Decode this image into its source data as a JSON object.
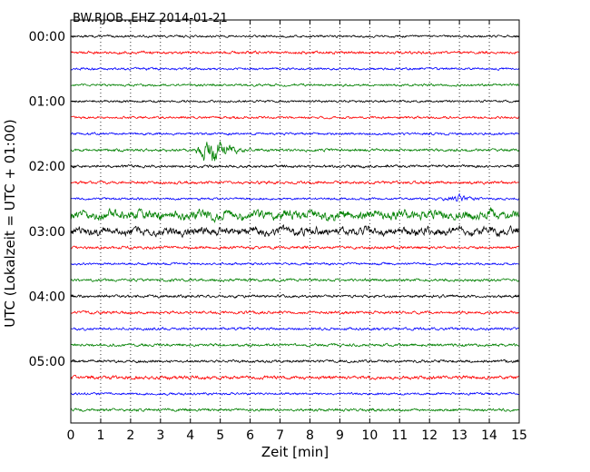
{
  "chart_data": {
    "type": "line",
    "title": "BW.RJOB..EHZ 2014-01-21",
    "xlabel": "Zeit  [min]",
    "ylabel": "UTC (Lokalzeit = UTC + 01:00)",
    "xlim": [
      0,
      15
    ],
    "x_ticks": [
      "0",
      "1",
      "2",
      "3",
      "4",
      "5",
      "6",
      "7",
      "8",
      "9",
      "10",
      "11",
      "12",
      "13",
      "14",
      "15"
    ],
    "y_ticks": [
      "00:00",
      "01:00",
      "02:00",
      "03:00",
      "04:00",
      "05:00"
    ],
    "grid": "vertical dotted at each minute",
    "trace_interval_min": 15,
    "trace_colors": [
      "#000000",
      "#ff0000",
      "#0000ff",
      "#008000"
    ],
    "traces": [
      {
        "start": "00:00",
        "amplitude": 0.1
      },
      {
        "start": "00:15",
        "amplitude": 0.12
      },
      {
        "start": "00:30",
        "amplitude": 0.1
      },
      {
        "start": "00:45",
        "amplitude": 0.1
      },
      {
        "start": "01:00",
        "amplitude": 0.1
      },
      {
        "start": "01:15",
        "amplitude": 0.1
      },
      {
        "start": "01:30",
        "amplitude": 0.1
      },
      {
        "start": "01:45",
        "amplitude": 0.12,
        "event": {
          "from_min": 4.2,
          "to_min": 7.5,
          "peak_min": 4.7,
          "peak_amplitude": 1.0
        }
      },
      {
        "start": "02:00",
        "amplitude": 0.12
      },
      {
        "start": "02:15",
        "amplitude": 0.12
      },
      {
        "start": "02:30",
        "amplitude": 0.1,
        "event": {
          "from_min": 9.5,
          "to_min": 15.0,
          "peak_min": 13.0,
          "peak_amplitude": 0.35
        }
      },
      {
        "start": "02:45",
        "amplitude": 0.4
      },
      {
        "start": "03:00",
        "amplitude": 0.35
      },
      {
        "start": "03:15",
        "amplitude": 0.12
      },
      {
        "start": "03:30",
        "amplitude": 0.1
      },
      {
        "start": "03:45",
        "amplitude": 0.12
      },
      {
        "start": "04:00",
        "amplitude": 0.12
      },
      {
        "start": "04:15",
        "amplitude": 0.12
      },
      {
        "start": "04:30",
        "amplitude": 0.12
      },
      {
        "start": "04:45",
        "amplitude": 0.12
      },
      {
        "start": "05:00",
        "amplitude": 0.12
      },
      {
        "start": "05:15",
        "amplitude": 0.15
      },
      {
        "start": "05:30",
        "amplitude": 0.1
      },
      {
        "start": "05:45",
        "amplitude": 0.12
      }
    ]
  }
}
